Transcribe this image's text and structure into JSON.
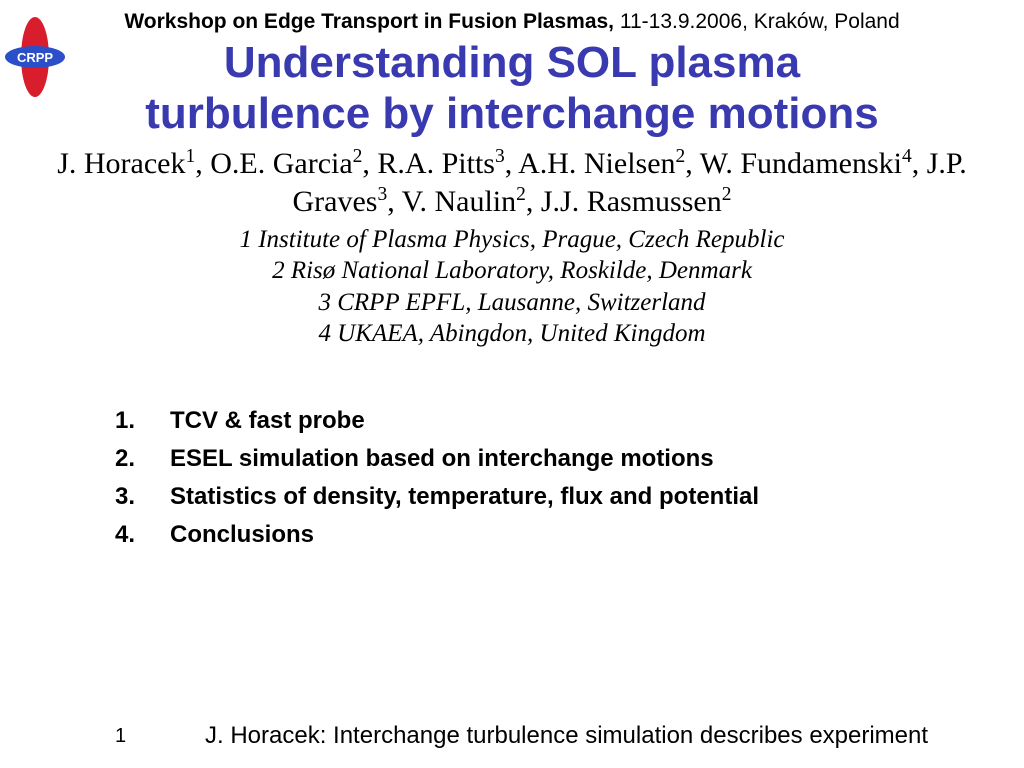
{
  "header": {
    "bold_part": "Workshop on Edge Transport in Fusion Plasmas, ",
    "normal_part": "11-13.9.2006, Kraków, Poland"
  },
  "title_line1": "Understanding SOL plasma",
  "title_line2": "turbulence by interchange motions",
  "authors_html": "J. Horacek<sup>1</sup>, O.E. Garcia<sup>2</sup>, R.A. Pitts<sup>3</sup>, A.H. Nielsen<sup>2</sup>, W. Fundamenski<sup>4</sup>, J.P. Graves<sup>3</sup>, V. Naulin<sup>2</sup>, J.J. Rasmussen<sup>2</sup>",
  "affiliations": [
    "1 Institute of Plasma Physics, Prague, Czech Republic",
    "2 Risø National Laboratory, Roskilde, Denmark",
    "3 CRPP EPFL, Lausanne, Switzerland",
    "4 UKAEA, Abingdon, United Kingdom"
  ],
  "outline": [
    {
      "num": "1.",
      "text": "TCV & fast probe"
    },
    {
      "num": "2.",
      "text": "ESEL simulation based on interchange motions"
    },
    {
      "num": "3.",
      "text": "Statistics of density, temperature, flux and potential"
    },
    {
      "num": "4.",
      "text": "Conclusions"
    }
  ],
  "footer": {
    "page": "1",
    "text": "J. Horacek: Interchange turbulence simulation describes experiment"
  },
  "logo": {
    "label": "CRPP",
    "ellipse_v_color": "#d81e2c",
    "ellipse_h_color": "#2a4fc9",
    "text_color": "#ffffff"
  },
  "colors": {
    "title": "#3a3ab0",
    "text": "#000000",
    "background": "#ffffff"
  }
}
